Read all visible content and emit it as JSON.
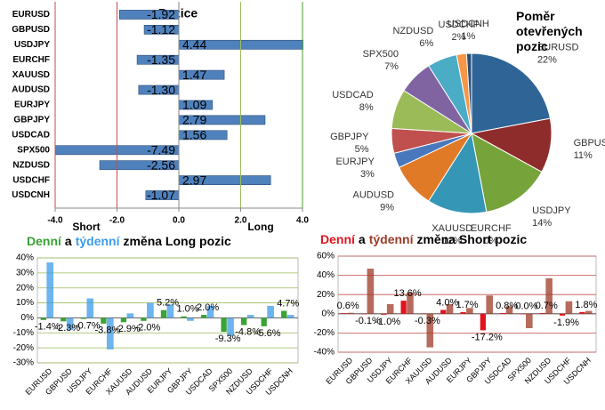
{
  "chart_data": [
    {
      "type": "hbar",
      "title": "Pozice",
      "categories": [
        "EURUSD",
        "GBPUSD",
        "USDJPY",
        "EURCHF",
        "XAUUSD",
        "AUDUSD",
        "EURJPY",
        "GBPJPY",
        "USDCAD",
        "SPX500",
        "NZDUSD",
        "USDCHF",
        "USDCNH"
      ],
      "values": [
        -1.92,
        -1.12,
        4.44,
        -1.35,
        1.47,
        -1.3,
        1.09,
        2.79,
        1.56,
        -7.49,
        -2.56,
        2.97,
        -1.07
      ],
      "value_labels": [
        "-1.92",
        "-1.12",
        "4.44",
        "-1.35",
        "1.47",
        "-1.30",
        "1.09",
        "2.79",
        "1.56",
        "-7.49",
        "-2.56",
        "2.97",
        "-1.07"
      ],
      "color": "#4f81bd",
      "xlim": [
        -4,
        4
      ],
      "xticks": [
        {
          "value": -4,
          "label": "-4.0"
        },
        {
          "value": -2,
          "label": "-2.0"
        },
        {
          "value": 0,
          "label": "0.0"
        },
        {
          "value": 2,
          "label": "2.0"
        },
        {
          "value": 4,
          "label": "4.0"
        }
      ],
      "reference_lines": [
        {
          "value": -2,
          "color": "#c0504d"
        },
        {
          "value": 2,
          "color": "#9bbb59"
        },
        {
          "value": 4,
          "color": "#4e9a2e"
        }
      ],
      "annotations": [
        "Short",
        "Long"
      ]
    },
    {
      "type": "pie",
      "title": "Poměr otevřených pozic",
      "categories": [
        "EURUSD",
        "GBPUSD",
        "USDJPY",
        "EURCHF",
        "XAUUSD",
        "AUDUSD",
        "EURJPY",
        "GBPJPY",
        "USDCAD",
        "SPX500",
        "NZDUSD",
        "USDCHF",
        "USDCNH"
      ],
      "values": [
        22,
        11,
        14,
        0,
        12,
        9,
        3,
        5,
        8,
        7,
        6,
        2,
        1
      ],
      "value_labels": [
        "22%",
        "11%",
        "14%",
        "0%",
        "12%",
        "9%",
        "3%",
        "5%",
        "8%",
        "7%",
        "6%",
        "2%",
        "1%"
      ],
      "colors": [
        "#2f6596",
        "#8e2b2b",
        "#76a33a",
        "#6b4f96",
        "#3596b5",
        "#e07a26",
        "#4a78bd",
        "#c0504d",
        "#9bbb59",
        "#8064a2",
        "#4bacc6",
        "#f79646",
        "#2c4d75"
      ]
    },
    {
      "type": "grouped_bar",
      "title": "změna Long pozic",
      "title_join": "a",
      "categories": [
        "EURUSD",
        "GBPUSD",
        "USDJPY",
        "EURCHF",
        "XAUUSD",
        "AUDUSD",
        "EURJPY",
        "GBPJPY",
        "USDCAD",
        "SPX500",
        "NZDUSD",
        "USDCHF",
        "USDCNH"
      ],
      "series": [
        {
          "name": "Denní",
          "color": "#3aa335",
          "values": [
            -1.4,
            -2.3,
            -0.7,
            -3.8,
            -2.9,
            -2.0,
            5.2,
            1.0,
            2.0,
            -9.3,
            -4.8,
            -5.6,
            4.7
          ],
          "value_labels": [
            "-1.4%",
            "-2.3%",
            "-0.7%",
            "-3.8%",
            "-2.9%",
            "-2.0%",
            "5.2%",
            "1.0%",
            "2.0%",
            "-9.3%",
            "-4.8%",
            "-5.6%",
            "4.7%"
          ]
        },
        {
          "name": "týdenní",
          "color": "#3d9be9",
          "values": [
            37,
            -8,
            13,
            -21,
            3,
            10,
            9,
            -2,
            8,
            -12,
            2,
            8,
            2
          ]
        }
      ],
      "ylim": [
        -30,
        40
      ],
      "yticks": [
        {
          "value": -30,
          "label": "-30%"
        },
        {
          "value": -20,
          "label": "-20%"
        },
        {
          "value": -10,
          "label": "-10%"
        },
        {
          "value": 0,
          "label": "0%"
        },
        {
          "value": 10,
          "label": "10%"
        },
        {
          "value": 20,
          "label": "20%"
        },
        {
          "value": 30,
          "label": "30%"
        },
        {
          "value": 40,
          "label": "40%"
        }
      ],
      "grid": true,
      "grid_color": "#9bbb59"
    },
    {
      "type": "grouped_bar",
      "title": "změna Short pozic",
      "title_join": "a",
      "categories": [
        "EURUSD",
        "GBPUSD",
        "USDJPY",
        "EURCHF",
        "XAUUSD",
        "AUDUSD",
        "EURJPY",
        "GBPJPY",
        "USDCAD",
        "SPX500",
        "NZDUSD",
        "USDCHF",
        "USDCNH"
      ],
      "series": [
        {
          "name": "Denní",
          "color": "#e0141e",
          "values": [
            0.6,
            -0.1,
            -1.0,
            13.6,
            -0.3,
            4.0,
            1.7,
            -17.2,
            0.8,
            0.0,
            0.7,
            -1.9,
            1.8
          ],
          "value_labels": [
            "0.6%",
            "-0.1%",
            "-1.0%",
            "13.6%",
            "-0.3%",
            "4.0%",
            "1.7%",
            "-17.2%",
            "0.8%",
            "0.0%",
            "0.7%",
            "-1.9%",
            "1.8%"
          ]
        },
        {
          "name": "týdenní",
          "color": "#9e3a26",
          "values": [
            1,
            47,
            10,
            22,
            -35,
            10,
            6,
            19,
            8,
            -15,
            37,
            13,
            3
          ]
        }
      ],
      "ylim": [
        -40,
        60
      ],
      "yticks": [
        {
          "value": -40,
          "label": "-40%"
        },
        {
          "value": -20,
          "label": "-20%"
        },
        {
          "value": 0,
          "label": "0%"
        },
        {
          "value": 20,
          "label": "20%"
        },
        {
          "value": 40,
          "label": "40%"
        },
        {
          "value": 60,
          "label": "60%"
        }
      ],
      "grid": true,
      "grid_color": "#c0504d"
    }
  ]
}
